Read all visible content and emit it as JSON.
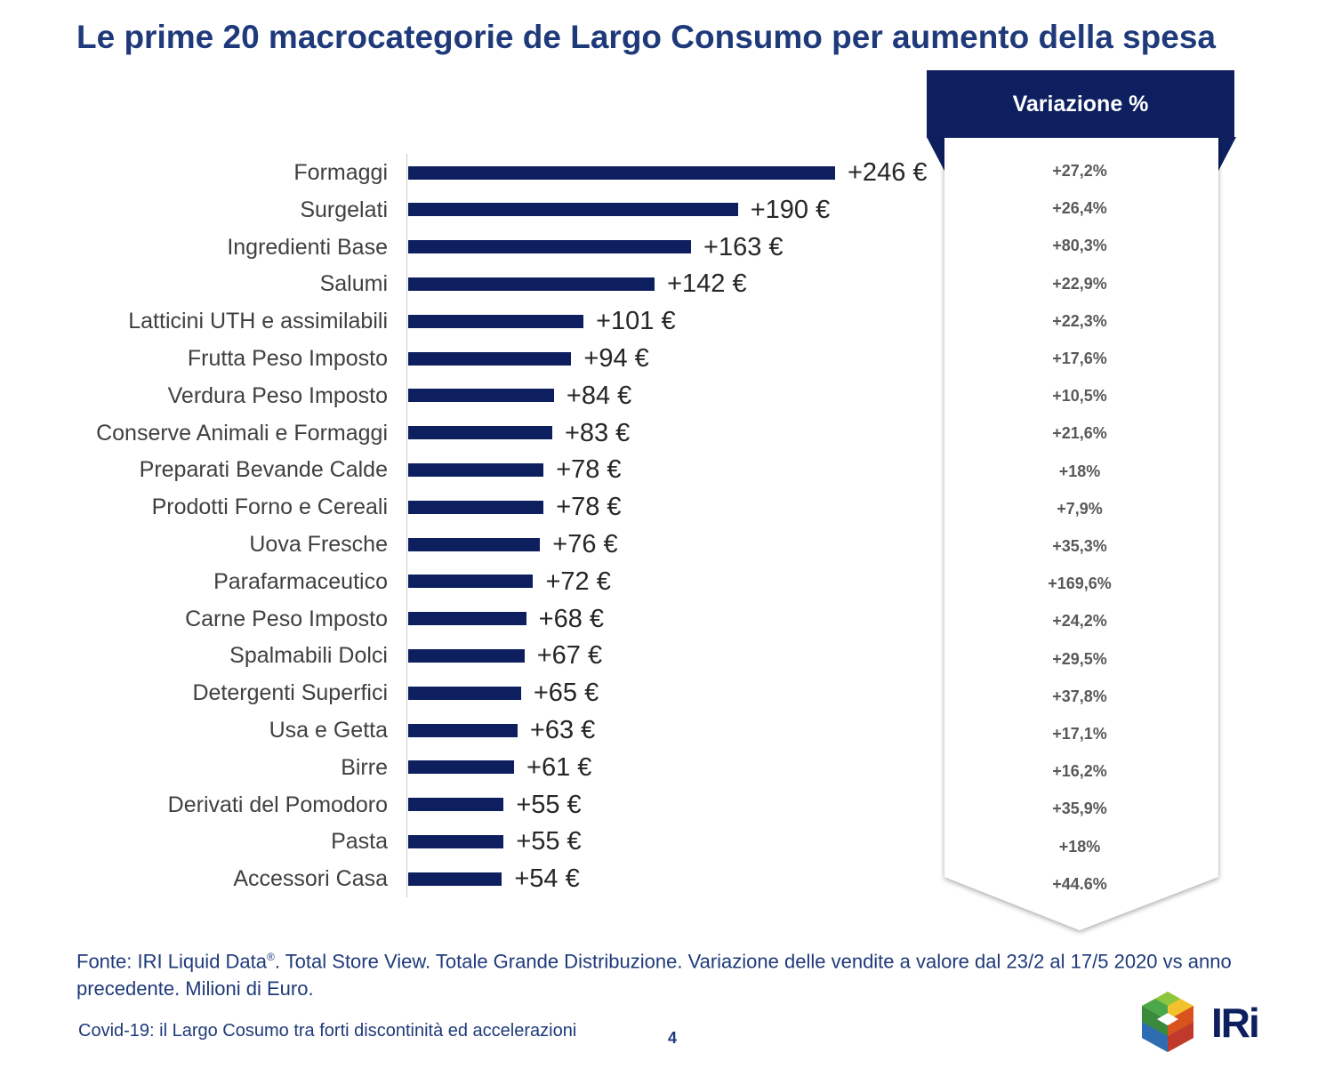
{
  "title": "Le prime 20 macrocategorie de Largo Consumo per aumento della spesa",
  "variation_header": "Variazione %",
  "chart_data": {
    "type": "bar",
    "orientation": "horizontal",
    "categories": [
      "Formaggi",
      "Surgelati",
      "Ingredienti Base",
      "Salumi",
      "Latticini UTH e assimilabili",
      "Frutta Peso Imposto",
      "Verdura Peso Imposto",
      "Conserve Animali e Formaggi",
      "Preparati Bevande Calde",
      "Prodotti Forno e Cereali",
      "Uova Fresche",
      "Parafarmaceutico",
      "Carne Peso Imposto",
      "Spalmabili Dolci",
      "Detergenti Superfici",
      "Usa e Getta",
      "Birre",
      "Derivati del Pomodoro",
      "Pasta",
      "Accessori Casa"
    ],
    "values": [
      246,
      190,
      163,
      142,
      101,
      94,
      84,
      83,
      78,
      78,
      76,
      72,
      68,
      67,
      65,
      63,
      61,
      55,
      55,
      54
    ],
    "value_labels": [
      "+246 €",
      "+190 €",
      "+163 €",
      "+142 €",
      "+101 €",
      "+94 €",
      "+84 €",
      "+83 €",
      "+78 €",
      "+78 €",
      "+76 €",
      "+72 €",
      "+68 €",
      "+67 €",
      "+65 €",
      "+63 €",
      "+61 €",
      "+55 €",
      "+55 €",
      "+54 €"
    ],
    "variation_pct": [
      "+27,2%",
      "+26,4%",
      "+80,3%",
      "+22,9%",
      "+22,3%",
      "+17,6%",
      "+10,5%",
      "+21,6%",
      "+18%",
      "+7,9%",
      "+35,3%",
      "+169,6%",
      "+24,2%",
      "+29,5%",
      "+37,8%",
      "+17,1%",
      "+16,2%",
      "+35,9%",
      "+18%",
      "+44.6%"
    ],
    "xlim": [
      0,
      246
    ],
    "grid": false,
    "bar_color": "#0d1f5e"
  },
  "source": {
    "prefix": "Fonte: IRI Liquid Data",
    "reg_mark": "®",
    "text": ". Total Store View. Totale Grande Distribuzione. Variazione delle vendite a valore dal 23/2 al 17/5 2020 vs anno precedente. Milioni di Euro."
  },
  "footer": {
    "text": "Covid-19: il Largo Cosumo tra forti discontinità ed accelerazioni",
    "page": "4"
  },
  "logo": {
    "text": "IRi"
  },
  "colors": {
    "title": "#1f3a7a",
    "header_bg": "#0d1f5e",
    "bar": "#0d1f5e"
  }
}
